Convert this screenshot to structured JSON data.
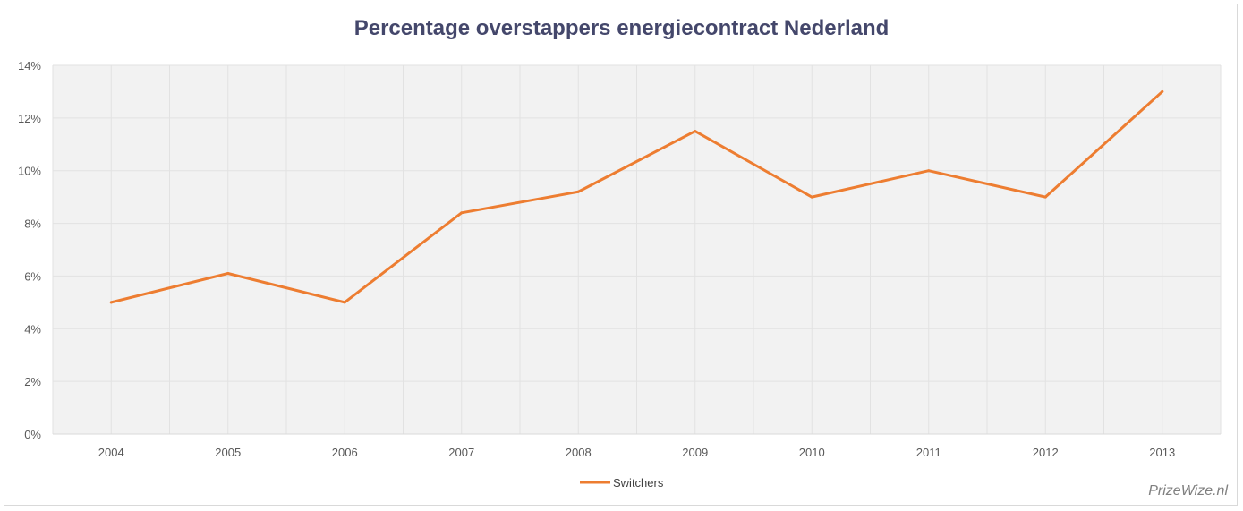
{
  "chart_data": {
    "type": "line",
    "title": "Percentage overstappers energiecontract Nederland",
    "categories": [
      "2004",
      "2005",
      "2006",
      "2007",
      "2008",
      "2009",
      "2010",
      "2011",
      "2012",
      "2013"
    ],
    "series": [
      {
        "name": "Switchers",
        "values": [
          5.0,
          6.1,
          5.0,
          8.4,
          9.2,
          11.5,
          9.0,
          10.0,
          9.0,
          13.0
        ],
        "color": "#ed7d31"
      }
    ],
    "ylim": [
      0,
      14
    ],
    "yticks": [
      0,
      2,
      4,
      6,
      8,
      10,
      12,
      14
    ],
    "ytick_labels": [
      "0%",
      "2%",
      "4%",
      "6%",
      "8%",
      "10%",
      "12%",
      "14%"
    ],
    "grid": true,
    "legend_position": "bottom",
    "plot_background": "#f2f2f2",
    "watermark": "PrizeWize.nl"
  }
}
